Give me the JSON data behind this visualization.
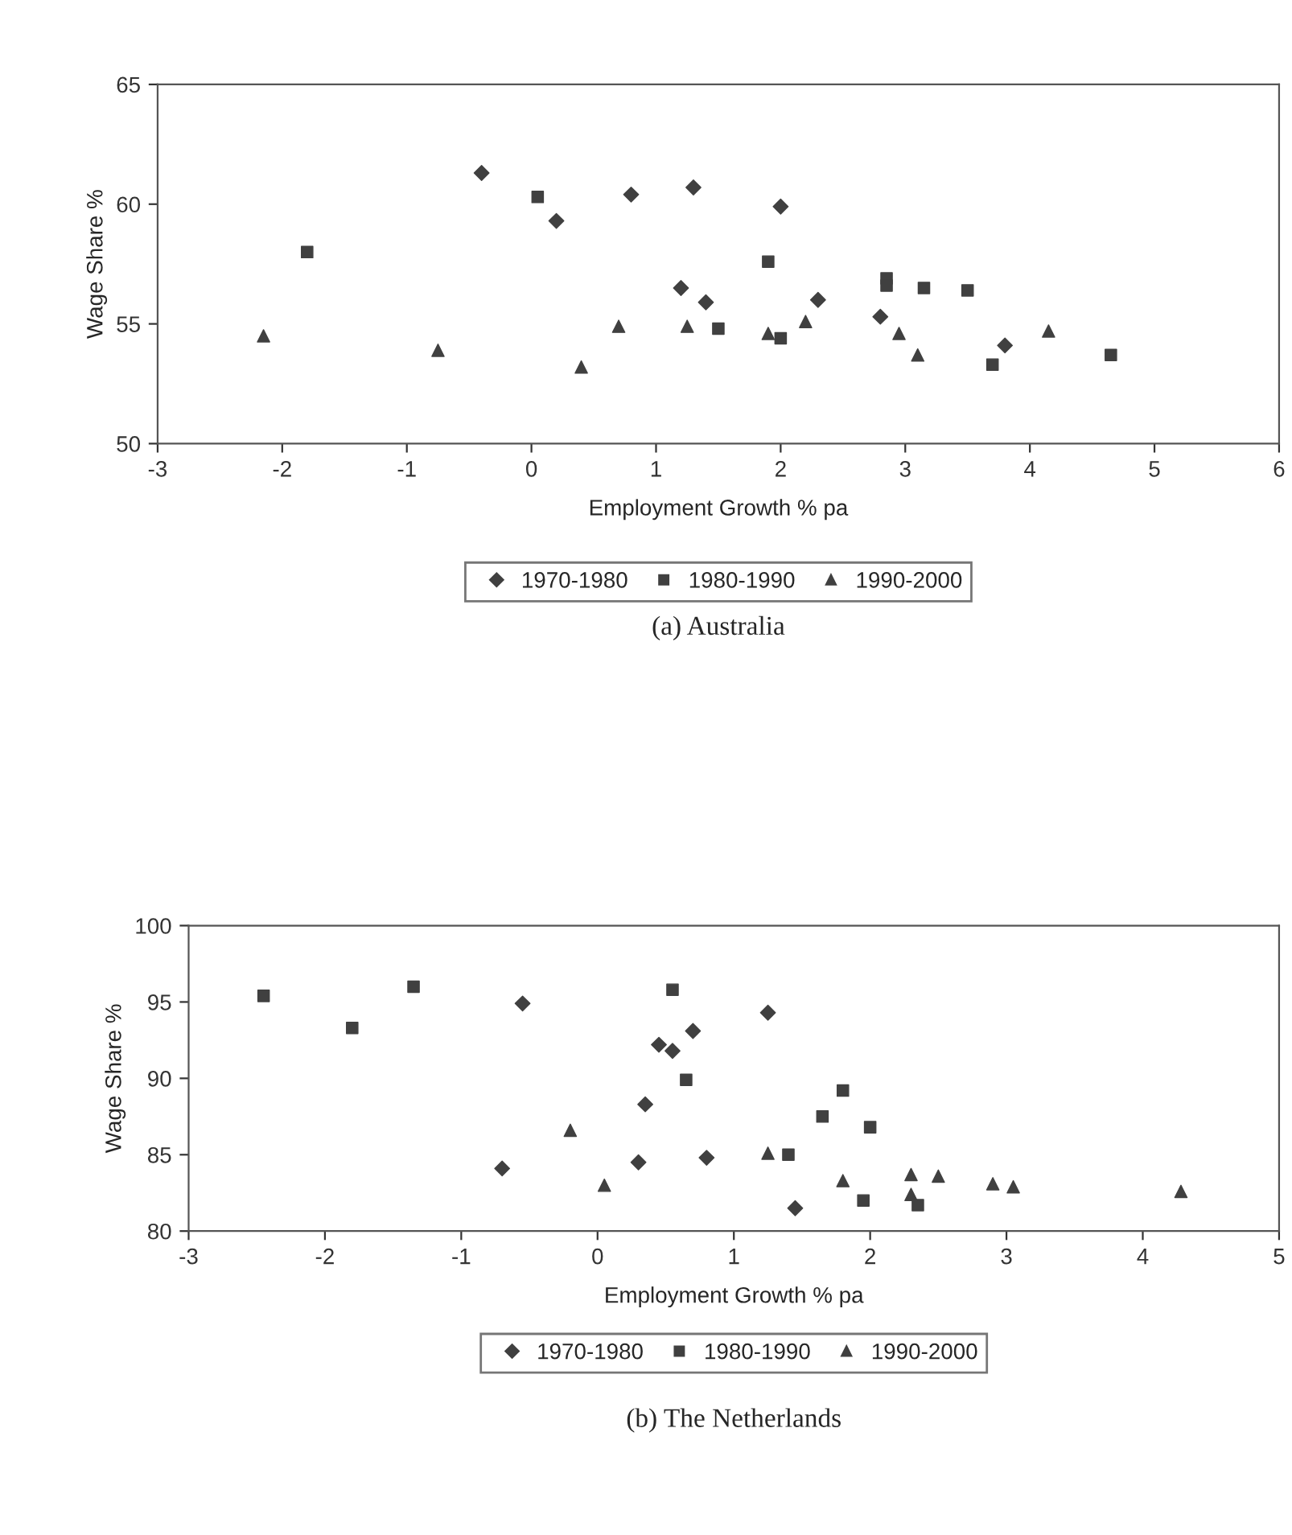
{
  "chart_data": [
    {
      "type": "scatter",
      "title": "(a) Australia",
      "xlabel": "Employment Growth % pa",
      "ylabel": "Wage Share %",
      "xlim": [
        -3,
        6
      ],
      "xticks": [
        -3,
        -2,
        -1,
        0,
        1,
        2,
        3,
        4,
        5,
        6
      ],
      "ylim": [
        50,
        65
      ],
      "yticks": [
        50,
        55,
        60,
        65
      ],
      "grid": false,
      "legend": "bottom",
      "series": [
        {
          "name": "1970-1980",
          "color": "#404040",
          "marker": "diamond",
          "x": [
            -0.4,
            0.2,
            0.8,
            1.3,
            2.0,
            1.2,
            1.4,
            2.3,
            2.8,
            3.8
          ],
          "values": [
            61.3,
            59.3,
            60.4,
            60.7,
            59.9,
            56.5,
            55.9,
            56.0,
            55.3,
            54.1
          ]
        },
        {
          "name": "1980-1990",
          "color": "#404040",
          "marker": "square",
          "x": [
            -1.8,
            0.05,
            1.9,
            1.5,
            2.0,
            2.85,
            2.85,
            3.15,
            3.5,
            3.7,
            4.65
          ],
          "values": [
            58.0,
            60.3,
            57.6,
            54.8,
            54.4,
            56.9,
            56.6,
            56.5,
            56.4,
            53.3,
            53.7
          ]
        },
        {
          "name": "1990-2000",
          "color": "#404040",
          "marker": "triangle",
          "x": [
            -2.15,
            -0.75,
            0.4,
            0.7,
            1.25,
            1.9,
            2.2,
            2.95,
            3.1,
            4.15
          ],
          "values": [
            54.5,
            53.9,
            53.2,
            54.9,
            54.9,
            54.6,
            55.1,
            54.6,
            53.7,
            54.7
          ]
        }
      ]
    },
    {
      "type": "scatter",
      "title": "(b) The Netherlands",
      "xlabel": "Employment Growth % pa",
      "ylabel": "Wage Share %",
      "xlim": [
        -3,
        5
      ],
      "xticks": [
        -3,
        -2,
        -1,
        0,
        1,
        2,
        3,
        4,
        5
      ],
      "ylim": [
        80,
        100
      ],
      "yticks": [
        80,
        85,
        90,
        95,
        100
      ],
      "grid": false,
      "legend": "bottom",
      "series": [
        {
          "name": "1970-1980",
          "color": "#404040",
          "marker": "diamond",
          "x": [
            -0.55,
            0.45,
            0.55,
            0.7,
            1.25,
            0.35,
            -0.7,
            0.3,
            0.8,
            1.45
          ],
          "values": [
            94.9,
            92.2,
            91.8,
            93.1,
            94.3,
            88.3,
            84.1,
            84.5,
            84.8,
            81.5
          ]
        },
        {
          "name": "1980-1990",
          "color": "#404040",
          "marker": "square",
          "x": [
            -2.45,
            -1.8,
            -1.35,
            0.55,
            0.65,
            1.4,
            1.65,
            1.8,
            2.0,
            1.95,
            2.35
          ],
          "values": [
            95.4,
            93.3,
            96.0,
            95.8,
            89.9,
            85.0,
            87.5,
            89.2,
            86.8,
            82.0,
            81.7
          ]
        },
        {
          "name": "1990-2000",
          "color": "#404040",
          "marker": "triangle",
          "x": [
            -0.2,
            0.05,
            1.25,
            1.8,
            2.3,
            2.3,
            2.5,
            2.9,
            3.05,
            4.28
          ],
          "values": [
            86.6,
            83.0,
            85.1,
            83.3,
            83.7,
            82.4,
            83.6,
            83.1,
            82.9,
            82.6
          ]
        }
      ]
    }
  ]
}
